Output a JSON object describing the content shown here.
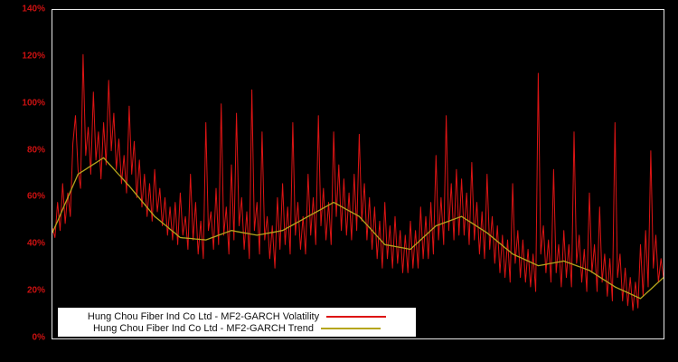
{
  "chart_data": {
    "type": "line",
    "title": "",
    "xlabel": "",
    "ylabel": "",
    "ylim": [
      0,
      140
    ],
    "yticks": [
      "0%",
      "20%",
      "40%",
      "60%",
      "80%",
      "100%",
      "120%",
      "140%"
    ],
    "ytick_values": [
      0,
      20,
      40,
      60,
      80,
      100,
      120,
      140
    ],
    "grid": false,
    "legend_position": "bottom-left-inside",
    "colors": {
      "background": "#000000",
      "plot_border": "#e8e8e8",
      "axis_text": "#cc1111",
      "legend_background": "#ffffff",
      "legend_text": "#111111"
    },
    "series": [
      {
        "name": "Hung Chou Fiber Ind Co Ltd - MF2-GARCH Volatility",
        "color": "#dd1414",
        "width": 1,
        "values": [
          47,
          43,
          58,
          46,
          66,
          49,
          62,
          52,
          83,
          95,
          72,
          64,
          121,
          78,
          90,
          70,
          105,
          76,
          88,
          68,
          92,
          74,
          110,
          80,
          96,
          72,
          85,
          66,
          78,
          62,
          99,
          70,
          84,
          60,
          76,
          56,
          70,
          52,
          66,
          50,
          72,
          54,
          64,
          48,
          60,
          44,
          56,
          42,
          58,
          40,
          62,
          44,
          52,
          38,
          70,
          42,
          58,
          36,
          50,
          34,
          92,
          46,
          54,
          38,
          64,
          40,
          100,
          44,
          56,
          36,
          74,
          42,
          96,
          48,
          60,
          38,
          54,
          34,
          106,
          46,
          58,
          36,
          88,
          42,
          52,
          34,
          48,
          30,
          60,
          38,
          66,
          40,
          56,
          36,
          92,
          44,
          58,
          38,
          52,
          36,
          70,
          44,
          60,
          40,
          95,
          48,
          64,
          42,
          58,
          40,
          88,
          52,
          74,
          46,
          68,
          44,
          62,
          42,
          70,
          46,
          87,
          50,
          66,
          42,
          60,
          38,
          56,
          34,
          50,
          30,
          58,
          34,
          48,
          30,
          52,
          32,
          46,
          28,
          44,
          28,
          50,
          30,
          46,
          30,
          56,
          34,
          52,
          34,
          58,
          36,
          78,
          42,
          60,
          40,
          95,
          46,
          66,
          42,
          72,
          44,
          68,
          44,
          62,
          40,
          75,
          42,
          58,
          36,
          54,
          34,
          70,
          38,
          52,
          32,
          48,
          28,
          44,
          26,
          42,
          24,
          66,
          32,
          46,
          26,
          42,
          24,
          38,
          22,
          36,
          20,
          113,
          36,
          48,
          28,
          42,
          24,
          72,
          28,
          40,
          22,
          46,
          26,
          40,
          22,
          88,
          32,
          44,
          24,
          38,
          20,
          62,
          28,
          40,
          20,
          56,
          24,
          36,
          18,
          34,
          16,
          92,
          26,
          36,
          16,
          30,
          14,
          26,
          12,
          24,
          13,
          40,
          18,
          46,
          22,
          80,
          30,
          44,
          24,
          34,
          26
        ]
      },
      {
        "name": "Hung Chou Fiber Ind Co Ltd - MF2-GARCH Trend",
        "color": "#b5a51c",
        "width": 1.3,
        "values": [
          45,
          47.5,
          50,
          52.5,
          55,
          57.5,
          60,
          62.5,
          65,
          67.5,
          70,
          70.7,
          71.4,
          72.1,
          72.8,
          73.5,
          74.2,
          74.9,
          75.6,
          76.3,
          77,
          75.8,
          74.6,
          73.4,
          72.2,
          71,
          69.8,
          68.6,
          67.4,
          66.2,
          65,
          63.7,
          62.4,
          61.1,
          59.8,
          58.5,
          57.2,
          55.9,
          54.6,
          53.3,
          52,
          51.1,
          50.2,
          49.3,
          48.4,
          47.5,
          46.6,
          45.7,
          44.8,
          43.9,
          43,
          42.9,
          42.8,
          42.7,
          42.6,
          42.5,
          42.4,
          42.3,
          42.2,
          42.1,
          42,
          42.4,
          42.8,
          43.2,
          43.6,
          44,
          44.4,
          44.8,
          45.2,
          45.6,
          46,
          45.8,
          45.6,
          45.4,
          45.2,
          45,
          44.8,
          44.6,
          44.4,
          44.2,
          44,
          44.2,
          44.4,
          44.6,
          44.8,
          45,
          45.2,
          45.4,
          45.6,
          45.8,
          46,
          46.6,
          47.2,
          47.8,
          48.4,
          49,
          49.6,
          50.2,
          50.8,
          51.4,
          52,
          52.6,
          53.2,
          53.8,
          54.4,
          55,
          55.6,
          56.2,
          56.8,
          57.4,
          58,
          57.4,
          56.8,
          56.2,
          55.6,
          55,
          54.4,
          53.8,
          53.2,
          52.6,
          52,
          50.8,
          49.6,
          48.4,
          47.2,
          46,
          44.8,
          43.6,
          42.4,
          41.2,
          40,
          39.8,
          39.6,
          39.4,
          39.2,
          39,
          38.8,
          38.6,
          38.4,
          38.2,
          38,
          39,
          40,
          41,
          42,
          43,
          44,
          45,
          46,
          47,
          48,
          48.4,
          48.8,
          49.2,
          49.6,
          50,
          50.4,
          50.8,
          51.2,
          51.6,
          52,
          51.3,
          50.6,
          49.9,
          49.2,
          48.5,
          47.8,
          47.1,
          46.4,
          45.7,
          45,
          44.1,
          43.2,
          42.3,
          41.4,
          40.5,
          39.6,
          38.7,
          37.8,
          36.9,
          36,
          35.5,
          35,
          34.5,
          34,
          33.5,
          33,
          32.5,
          32,
          31.5,
          31,
          31.2,
          31.4,
          31.6,
          31.8,
          32,
          32.2,
          32.4,
          32.6,
          32.8,
          33,
          32.6,
          32.2,
          31.8,
          31.4,
          31,
          30.6,
          30.2,
          29.8,
          29.4,
          29,
          28.3,
          27.6,
          26.9,
          26.2,
          25.5,
          24.8,
          24.1,
          23.4,
          22.7,
          22,
          21.5,
          21,
          20.5,
          20,
          19.5,
          19,
          18.5,
          18,
          17.5,
          17,
          18,
          19,
          20,
          21,
          22,
          23,
          24,
          25,
          26
        ]
      }
    ]
  },
  "legend": {
    "entries": [
      {
        "label": "Hung Chou Fiber Ind Co Ltd - MF2-GARCH Volatility"
      },
      {
        "label": "Hung Chou Fiber Ind Co Ltd - MF2-GARCH Trend"
      }
    ]
  }
}
